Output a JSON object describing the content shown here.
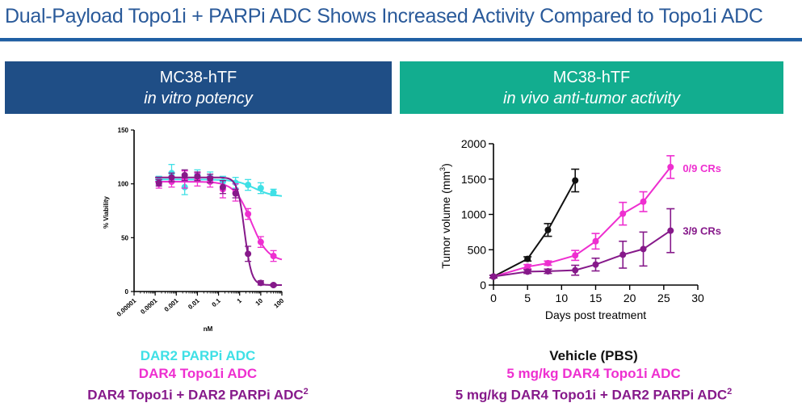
{
  "title": "Dual-Payload Topo1i + PARPi ADC Shows Increased Activity Compared to Topo1i ADC",
  "colors": {
    "title": "#2a5a9a",
    "rule": "#1f5fa3",
    "panel_left": "#1f4e86",
    "panel_right": "#12ad8f",
    "cyan": "#3fe0e6",
    "magenta": "#ee2fd0",
    "purple": "#86198a",
    "black": "#111111"
  },
  "panels": {
    "left": {
      "header": "MC38-hTF",
      "subheader": "in vitro potency"
    },
    "right": {
      "header": "MC38-hTF",
      "subheader": "in vivo anti-tumor activity"
    }
  },
  "legends": {
    "left": [
      {
        "text": "DAR2 PARPi ADC",
        "color": "#3fe0e6"
      },
      {
        "text": "DAR4 Topo1i ADC",
        "color": "#ee2fd0"
      },
      {
        "text": "DAR4 Topo1i + DAR2 PARPi ADC",
        "sup": "2",
        "color": "#86198a"
      }
    ],
    "right": [
      {
        "text": "Vehicle (PBS)",
        "color": "#111111"
      },
      {
        "text": "5 mg/kg DAR4 Topo1i ADC",
        "color": "#ee2fd0"
      },
      {
        "text": "5 mg/kg DAR4 Topo1i + DAR2 PARPi ADC",
        "sup": "2",
        "color": "#86198a"
      }
    ]
  },
  "chart_data": [
    {
      "type": "scatter",
      "xscale": "log",
      "xlabel": "nM",
      "ylabel": "% Viability",
      "xlim": [
        1e-05,
        100
      ],
      "ylim": [
        0,
        150
      ],
      "xticks": [
        "0.00001",
        "0.0001",
        "0.001",
        "0.01",
        "0.1",
        "1",
        "10",
        "100"
      ],
      "yticks": [
        0,
        50,
        100,
        150
      ],
      "grid": false,
      "series": [
        {
          "name": "DAR2 PARPi ADC",
          "color": "#3fe0e6",
          "x": [
            0.00015,
            0.0006,
            0.0025,
            0.01,
            0.04,
            0.16,
            0.64,
            2.5,
            10,
            40
          ],
          "y": [
            103,
            110,
            97,
            108,
            106,
            102,
            101,
            99,
            96,
            92
          ],
          "err": [
            4,
            8,
            7,
            5,
            5,
            5,
            5,
            5,
            5,
            3
          ],
          "fit": {
            "top": 104,
            "bottom": 88,
            "ec50": 5,
            "hill": 1
          }
        },
        {
          "name": "DAR4 Topo1i ADC",
          "color": "#ee2fd0",
          "x": [
            0.00015,
            0.0006,
            0.0025,
            0.01,
            0.04,
            0.16,
            0.64,
            2.5,
            10,
            40
          ],
          "y": [
            100,
            102,
            104,
            104,
            102,
            95,
            92,
            72,
            46,
            33
          ],
          "err": [
            4,
            5,
            8,
            6,
            5,
            8,
            8,
            5,
            5,
            5
          ],
          "fit": {
            "top": 102,
            "bottom": 28,
            "ec50": 3.5,
            "hill": 1.1
          }
        },
        {
          "name": "DAR4 Topo1i + DAR2 PARPi ADC",
          "color": "#86198a",
          "x": [
            0.00015,
            0.0006,
            0.0025,
            0.01,
            0.04,
            0.16,
            0.64,
            2.5,
            10,
            40
          ],
          "y": [
            101,
            106,
            108,
            107,
            105,
            97,
            91,
            35,
            8,
            6
          ],
          "err": [
            3,
            4,
            5,
            4,
            4,
            6,
            4,
            7,
            2,
            1
          ],
          "fit": {
            "top": 106,
            "bottom": 6,
            "ec50": 1.7,
            "hill": 2.6
          }
        }
      ]
    },
    {
      "type": "line",
      "xlabel": "Days post treatment",
      "ylabel": "Tumor volume (mm",
      "ylabel_sup": "3",
      "ylabel_suffix": ")",
      "xlim": [
        0,
        30
      ],
      "ylim": [
        0,
        2000
      ],
      "xticks": [
        0,
        5,
        10,
        15,
        20,
        25,
        30
      ],
      "yticks": [
        0,
        500,
        1000,
        1500,
        2000
      ],
      "grid": false,
      "series": [
        {
          "name": "Vehicle (PBS)",
          "color": "#111111",
          "x": [
            0,
            5,
            8,
            12
          ],
          "y": [
            120,
            370,
            780,
            1480
          ],
          "err": [
            20,
            30,
            90,
            160
          ]
        },
        {
          "name": "5 mg/kg DAR4 Topo1i ADC",
          "color": "#ee2fd0",
          "x": [
            0,
            5,
            8,
            12,
            15,
            19,
            22,
            26
          ],
          "y": [
            120,
            260,
            310,
            420,
            620,
            1010,
            1180,
            1670
          ],
          "err": [
            15,
            30,
            30,
            70,
            110,
            160,
            140,
            160
          ]
        },
        {
          "name": "5 mg/kg DAR4 Topo1i + DAR2 PARPi ADC",
          "color": "#86198a",
          "x": [
            0,
            5,
            8,
            12,
            15,
            19,
            22,
            26
          ],
          "y": [
            120,
            190,
            195,
            210,
            290,
            430,
            510,
            770
          ],
          "err": [
            15,
            25,
            30,
            70,
            90,
            190,
            240,
            310
          ]
        }
      ],
      "annotations": [
        {
          "text": "0/9 CRs",
          "color": "#ee2fd0",
          "x": 26.6,
          "y": 1660
        },
        {
          "text": "3/9 CRs",
          "color": "#86198a",
          "x": 26.6,
          "y": 770
        }
      ]
    }
  ]
}
